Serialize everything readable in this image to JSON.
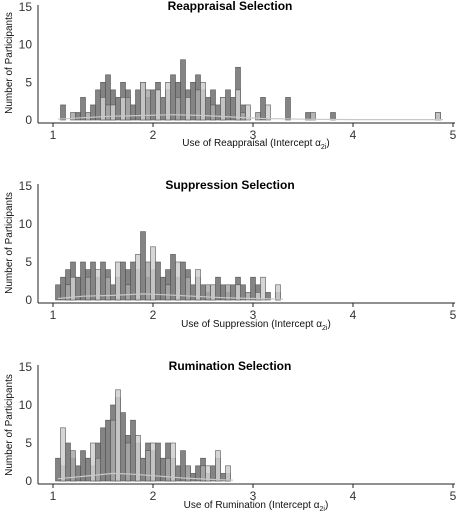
{
  "chart_data": [
    {
      "type": "bar",
      "title": "Reappraisal Selection",
      "xlabel_prefix": "Use of Reappraisal (Intercept α",
      "xlabel_sub": "2i",
      "xlabel_suffix": ")",
      "ylabel": "Number of Participants",
      "xlim": [
        1,
        5
      ],
      "ylim": [
        0,
        15
      ],
      "xticks": [
        1,
        2,
        3,
        4,
        5
      ],
      "yticks": [
        0,
        5,
        10,
        15
      ],
      "bin_width": 0.05,
      "series": [
        {
          "shade": "#6e6e6e",
          "bins": [
            [
              1.1,
              2
            ],
            [
              1.25,
              1
            ],
            [
              1.3,
              3
            ],
            [
              1.4,
              2
            ],
            [
              1.45,
              4
            ],
            [
              1.5,
              5
            ],
            [
              1.55,
              6
            ],
            [
              1.6,
              4
            ],
            [
              1.65,
              3
            ],
            [
              1.7,
              5
            ],
            [
              1.75,
              4
            ],
            [
              1.8,
              2
            ],
            [
              1.85,
              4
            ],
            [
              1.9,
              5
            ],
            [
              1.95,
              3
            ],
            [
              2.0,
              4
            ],
            [
              2.05,
              5
            ],
            [
              2.1,
              3
            ],
            [
              2.15,
              4
            ],
            [
              2.2,
              6
            ],
            [
              2.25,
              5
            ],
            [
              2.3,
              8
            ],
            [
              2.35,
              4
            ],
            [
              2.4,
              5
            ],
            [
              2.45,
              6
            ],
            [
              2.5,
              4
            ],
            [
              2.55,
              3
            ],
            [
              2.6,
              4
            ],
            [
              2.65,
              2
            ],
            [
              2.7,
              3
            ],
            [
              2.75,
              4
            ],
            [
              2.8,
              3
            ],
            [
              2.85,
              7
            ],
            [
              2.9,
              2
            ],
            [
              3.1,
              3
            ],
            [
              3.35,
              3
            ],
            [
              3.55,
              1
            ],
            [
              3.8,
              1
            ],
            [
              4.85,
              1
            ]
          ]
        },
        {
          "shade": "#cfcfcf",
          "bins": [
            [
              1.5,
              3
            ],
            [
              1.6,
              2
            ],
            [
              1.7,
              3
            ],
            [
              1.9,
              5
            ],
            [
              2.05,
              4
            ],
            [
              2.15,
              5
            ],
            [
              2.35,
              3
            ],
            [
              2.5,
              5
            ],
            [
              2.7,
              3
            ],
            [
              2.85,
              4
            ],
            [
              2.95,
              2
            ],
            [
              3.15,
              2
            ],
            [
              4.85,
              1
            ]
          ]
        },
        {
          "shade": "#a8a8a8",
          "bins": [
            [
              1.2,
              1
            ],
            [
              1.35,
              1
            ],
            [
              1.55,
              2
            ],
            [
              1.75,
              3
            ],
            [
              1.95,
              4
            ],
            [
              2.25,
              3
            ],
            [
              2.45,
              4
            ],
            [
              2.6,
              2
            ],
            [
              2.9,
              1
            ],
            [
              3.05,
              1
            ],
            [
              3.6,
              1
            ]
          ]
        }
      ],
      "density": [
        [
          1.05,
          0.1
        ],
        [
          1.3,
          0.3
        ],
        [
          1.6,
          0.5
        ],
        [
          1.9,
          0.6
        ],
        [
          2.2,
          0.7
        ],
        [
          2.5,
          0.6
        ],
        [
          2.8,
          0.4
        ],
        [
          3.1,
          0.2
        ],
        [
          3.5,
          0.1
        ],
        [
          4.0,
          0.05
        ],
        [
          4.9,
          0.05
        ]
      ]
    },
    {
      "type": "bar",
      "title": "Suppression Selection",
      "xlabel_prefix": "Use of Suppression (Intercept α",
      "xlabel_sub": "2i",
      "xlabel_suffix": ")",
      "ylabel": "Number of Participants",
      "xlim": [
        1,
        5
      ],
      "ylim": [
        0,
        15
      ],
      "xticks": [
        1,
        2,
        3,
        4,
        5
      ],
      "yticks": [
        0,
        5,
        10,
        15
      ],
      "bin_width": 0.05,
      "series": [
        {
          "shade": "#6e6e6e",
          "bins": [
            [
              1.05,
              2
            ],
            [
              1.1,
              3
            ],
            [
              1.15,
              4
            ],
            [
              1.2,
              5
            ],
            [
              1.25,
              3
            ],
            [
              1.3,
              5
            ],
            [
              1.35,
              4
            ],
            [
              1.4,
              5
            ],
            [
              1.45,
              3
            ],
            [
              1.5,
              5
            ],
            [
              1.55,
              4
            ],
            [
              1.6,
              2
            ],
            [
              1.65,
              3
            ],
            [
              1.7,
              5
            ],
            [
              1.75,
              4
            ],
            [
              1.8,
              5
            ],
            [
              1.85,
              4
            ],
            [
              1.9,
              9
            ],
            [
              1.95,
              3
            ],
            [
              2.0,
              4
            ],
            [
              2.05,
              5
            ],
            [
              2.1,
              3
            ],
            [
              2.15,
              4
            ],
            [
              2.2,
              6
            ],
            [
              2.25,
              3
            ],
            [
              2.3,
              5
            ],
            [
              2.35,
              4
            ],
            [
              2.4,
              2
            ],
            [
              2.45,
              3
            ],
            [
              2.5,
              2
            ],
            [
              2.55,
              1
            ],
            [
              2.6,
              2
            ],
            [
              2.65,
              3
            ],
            [
              2.7,
              2
            ],
            [
              2.75,
              1
            ],
            [
              2.8,
              2
            ],
            [
              2.85,
              3
            ],
            [
              2.9,
              2
            ],
            [
              3.0,
              3
            ],
            [
              3.05,
              2
            ],
            [
              3.15,
              1
            ],
            [
              3.25,
              1
            ]
          ]
        },
        {
          "shade": "#cfcfcf",
          "bins": [
            [
              1.2,
              3
            ],
            [
              1.45,
              4
            ],
            [
              1.65,
              5
            ],
            [
              1.85,
              6
            ],
            [
              2.0,
              7
            ],
            [
              2.25,
              5
            ],
            [
              2.45,
              4
            ],
            [
              2.6,
              2
            ],
            [
              2.85,
              2
            ],
            [
              3.05,
              1
            ],
            [
              3.1,
              3
            ],
            [
              3.25,
              2
            ]
          ]
        },
        {
          "shade": "#a8a8a8",
          "bins": [
            [
              1.15,
              2
            ],
            [
              1.35,
              3
            ],
            [
              1.55,
              3
            ],
            [
              1.75,
              2
            ],
            [
              1.95,
              5
            ],
            [
              2.15,
              2
            ],
            [
              2.35,
              3
            ],
            [
              2.55,
              2
            ],
            [
              2.75,
              2
            ],
            [
              2.95,
              1
            ]
          ]
        }
      ],
      "density": [
        [
          1.05,
          0.2
        ],
        [
          1.3,
          0.5
        ],
        [
          1.6,
          0.6
        ],
        [
          1.9,
          0.8
        ],
        [
          2.1,
          0.7
        ],
        [
          2.4,
          0.5
        ],
        [
          2.7,
          0.3
        ],
        [
          3.0,
          0.2
        ],
        [
          3.3,
          0.1
        ]
      ]
    },
    {
      "type": "bar",
      "title": "Rumination Selection",
      "xlabel_prefix": "Use of Rumination (Intercept α",
      "xlabel_sub": "2i",
      "xlabel_suffix": ")",
      "ylabel": "Number of Participants",
      "xlim": [
        1,
        5
      ],
      "ylim": [
        0,
        15
      ],
      "xticks": [
        1,
        2,
        3,
        4,
        5
      ],
      "yticks": [
        0,
        5,
        10,
        15
      ],
      "bin_width": 0.05,
      "series": [
        {
          "shade": "#6e6e6e",
          "bins": [
            [
              1.05,
              3
            ],
            [
              1.1,
              2
            ],
            [
              1.15,
              5
            ],
            [
              1.2,
              3
            ],
            [
              1.25,
              2
            ],
            [
              1.3,
              4
            ],
            [
              1.35,
              3
            ],
            [
              1.4,
              2
            ],
            [
              1.45,
              5
            ],
            [
              1.5,
              7
            ],
            [
              1.55,
              8
            ],
            [
              1.6,
              10
            ],
            [
              1.65,
              11
            ],
            [
              1.7,
              9
            ],
            [
              1.75,
              6
            ],
            [
              1.8,
              8
            ],
            [
              1.85,
              5
            ],
            [
              1.9,
              3
            ],
            [
              1.95,
              5
            ],
            [
              2.0,
              4
            ],
            [
              2.05,
              5
            ],
            [
              2.1,
              3
            ],
            [
              2.15,
              5
            ],
            [
              2.2,
              3
            ],
            [
              2.25,
              2
            ],
            [
              2.3,
              4
            ],
            [
              2.35,
              2
            ],
            [
              2.4,
              1
            ],
            [
              2.45,
              2
            ],
            [
              2.5,
              3
            ],
            [
              2.55,
              1
            ],
            [
              2.6,
              2
            ],
            [
              2.65,
              3
            ],
            [
              2.7,
              1
            ],
            [
              2.75,
              1
            ]
          ]
        },
        {
          "shade": "#cfcfcf",
          "bins": [
            [
              1.1,
              7
            ],
            [
              1.4,
              5
            ],
            [
              1.65,
              12
            ],
            [
              1.85,
              6
            ],
            [
              2.0,
              5
            ],
            [
              2.2,
              5
            ],
            [
              2.55,
              2
            ],
            [
              2.65,
              4
            ],
            [
              2.75,
              2
            ]
          ]
        },
        {
          "shade": "#a8a8a8",
          "bins": [
            [
              1.2,
              4
            ],
            [
              1.45,
              3
            ],
            [
              1.6,
              8
            ],
            [
              1.75,
              5
            ],
            [
              1.95,
              4
            ],
            [
              2.15,
              3
            ],
            [
              2.35,
              2
            ],
            [
              2.5,
              2
            ]
          ]
        }
      ],
      "density": [
        [
          1.05,
          0.3
        ],
        [
          1.3,
          0.6
        ],
        [
          1.6,
          1.0
        ],
        [
          1.8,
          0.9
        ],
        [
          2.0,
          0.7
        ],
        [
          2.3,
          0.4
        ],
        [
          2.6,
          0.2
        ],
        [
          2.8,
          0.1
        ]
      ]
    }
  ]
}
